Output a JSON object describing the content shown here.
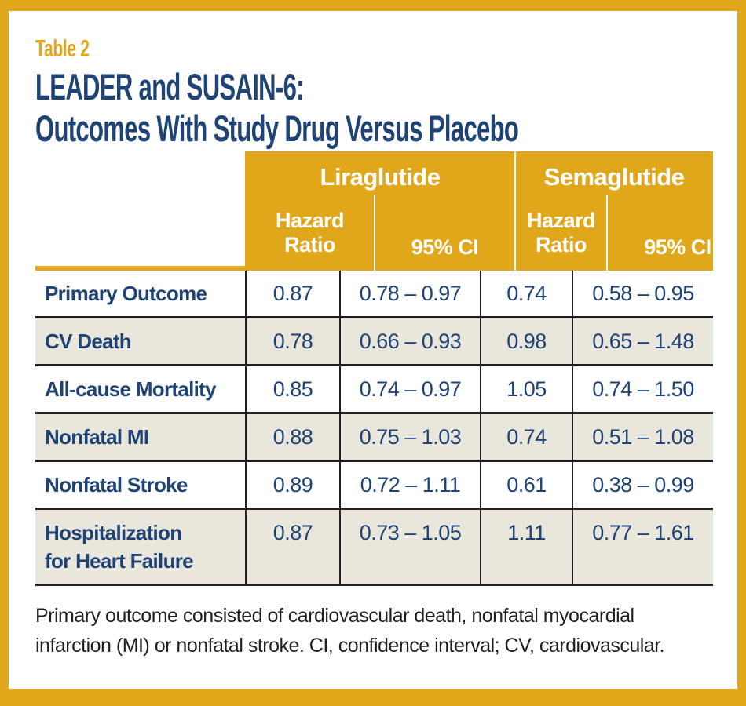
{
  "header": {
    "eyebrow": "Table 2",
    "title_line1": "LEADER and SUSAIN-6:",
    "title_line2": "Outcomes With Study Drug Versus Placebo"
  },
  "table": {
    "groups": [
      {
        "label": "Liraglutide"
      },
      {
        "label": "Semaglutide"
      }
    ],
    "sub_headers": [
      "Hazard Ratio",
      "95% CI",
      "Hazard Ratio",
      "95% CI"
    ],
    "rows": [
      {
        "label": "Primary Outcome",
        "values": [
          "0.87",
          "0.78 – 0.97",
          "0.74",
          "0.58 – 0.95"
        ]
      },
      {
        "label": "CV Death",
        "values": [
          "0.78",
          "0.66 – 0.93",
          "0.98",
          "0.65 – 1.48"
        ]
      },
      {
        "label": "All-cause Mortality",
        "values": [
          "0.85",
          "0.74 – 0.97",
          "1.05",
          "0.74 – 1.50"
        ]
      },
      {
        "label": "Nonfatal MI",
        "values": [
          "0.88",
          "0.75 – 1.03",
          "0.74",
          "0.51 – 1.08"
        ]
      },
      {
        "label": "Nonfatal Stroke",
        "values": [
          "0.89",
          "0.72 – 1.11",
          "0.61",
          "0.38 – 0.99"
        ]
      },
      {
        "label": "Hospitalization\nfor Heart Failure",
        "values": [
          "0.87",
          "0.73 – 1.05",
          "1.11",
          "0.77 – 1.61"
        ]
      }
    ]
  },
  "footnote": {
    "text": "Primary outcome consisted of cardiovascular death, nonfatal myocardial\ninfarction (MI) or nonfatal stroke. CI, confidence interval; CV, cardiovascular."
  },
  "colors": {
    "gold": "#E1A71B",
    "navy": "#1E4374",
    "row_shade": "#E9E6DC",
    "border_dark": "#231F20",
    "header_text_white": "#FFFFFF"
  }
}
